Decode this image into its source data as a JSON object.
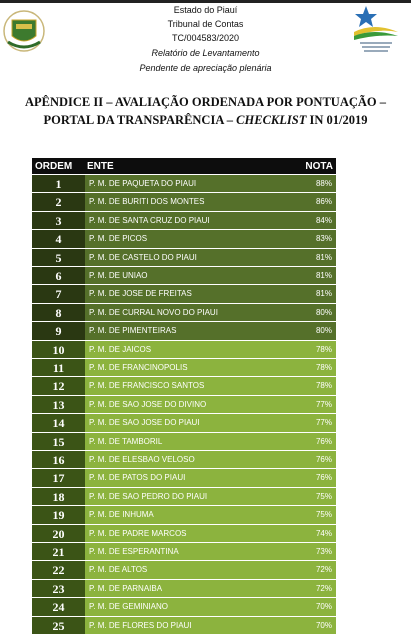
{
  "header": {
    "lines": [
      "Estado do Piauí",
      "Tribunal de Contas",
      "TC/004583/2020",
      "Relatório de Levantamento",
      "Pendente de apreciação plenária"
    ]
  },
  "title": {
    "line1": "APÊNDICE II – AVALIAÇÃO ORDENADA POR PONTUAÇÃO –",
    "line2": [
      "PORTAL DA TRANSPARÊNCIA – ",
      "CHECKLIST",
      " IN 01/2019"
    ]
  },
  "table": {
    "columns": [
      "ORDEM",
      "ENTE",
      "NOTA"
    ],
    "rows": [
      [
        "1",
        "P. M. DE PAQUETA DO PIAUI",
        "88%"
      ],
      [
        "2",
        "P. M. DE BURITI DOS MONTES",
        "86%"
      ],
      [
        "3",
        "P. M. DE SANTA CRUZ DO PIAUI",
        "84%"
      ],
      [
        "4",
        "P. M. DE PICOS",
        "83%"
      ],
      [
        "5",
        "P. M. DE CASTELO DO PIAUI",
        "81%"
      ],
      [
        "6",
        "P. M. DE UNIAO",
        "81%"
      ],
      [
        "7",
        "P. M. DE JOSE DE FREITAS",
        "81%"
      ],
      [
        "8",
        "P. M. DE CURRAL NOVO DO PIAUI",
        "80%"
      ],
      [
        "9",
        "P. M. DE PIMENTEIRAS",
        "80%"
      ],
      [
        "10",
        "P. M. DE JAICOS",
        "78%"
      ],
      [
        "11",
        "P. M. DE FRANCINOPOLIS",
        "78%"
      ],
      [
        "12",
        "P. M. DE FRANCISCO SANTOS",
        "78%"
      ],
      [
        "13",
        "P. M. DE SAO JOSE DO DIVINO",
        "77%"
      ],
      [
        "14",
        "P. M. DE SAO JOSE DO PIAUI",
        "77%"
      ],
      [
        "15",
        "P. M. DE TAMBORIL",
        "76%"
      ],
      [
        "16",
        "P. M. DE ELESBAO VELOSO",
        "76%"
      ],
      [
        "17",
        "P. M. DE PATOS DO PIAUI",
        "76%"
      ],
      [
        "18",
        "P. M. DE SAO PEDRO DO PIAUI",
        "75%"
      ],
      [
        "19",
        "P. M. DE INHUMA",
        "75%"
      ],
      [
        "20",
        "P. M. DE PADRE MARCOS",
        "74%"
      ],
      [
        "21",
        "P. M. DE ESPERANTINA",
        "73%"
      ],
      [
        "22",
        "P. M. DE ALTOS",
        "72%"
      ],
      [
        "23",
        "P. M. DE PARNAIBA",
        "72%"
      ],
      [
        "24",
        "P. M. DE GEMINIANO",
        "70%"
      ],
      [
        "25",
        "P. M. DE FLORES DO PIAUI",
        "70%"
      ]
    ]
  }
}
